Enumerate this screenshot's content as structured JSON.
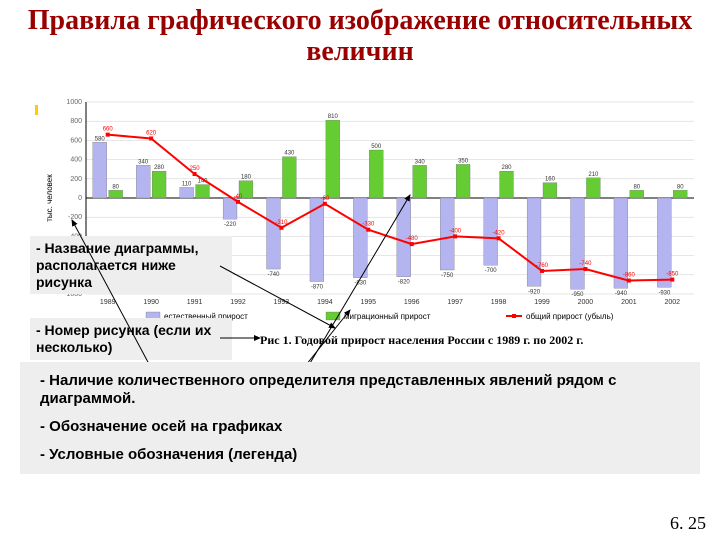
{
  "title": {
    "text": "Правила графического изображение относительных величин",
    "fontsize": 28,
    "color": "#990000"
  },
  "accent": {
    "color1": "#ffcc00",
    "color2": "#3366cc"
  },
  "chart": {
    "type": "bar+line",
    "background": "#ffffff",
    "grid_color": "#cccccc",
    "axis_color": "#000000",
    "years": [
      "1989",
      "1990",
      "1991",
      "1992",
      "1993",
      "1994",
      "1995",
      "1996",
      "1997",
      "1998",
      "1999",
      "2000",
      "2001",
      "2002"
    ],
    "series": {
      "natural": {
        "label": "естественный прирост",
        "color": "#b4b4f0",
        "values": [
          580,
          340,
          110,
          -220,
          -740,
          -870,
          -830,
          -820,
          -750,
          -700,
          -920,
          -950,
          -940,
          -930
        ]
      },
      "migration": {
        "label": "миграционный прирост",
        "color": "#66cc33",
        "values": [
          80,
          280,
          140,
          180,
          430,
          810,
          500,
          340,
          350,
          280,
          160,
          210,
          80,
          80
        ]
      },
      "total": {
        "label": "общий прирост (убыль)",
        "color": "#ff0000",
        "values": [
          660,
          620,
          250,
          -40,
          -310,
          -60,
          -330,
          -480,
          -400,
          -420,
          -760,
          -740,
          -860,
          -850
        ],
        "line_width": 2,
        "marker": "square"
      }
    },
    "ylim": [
      -1000,
      1000
    ],
    "ytick_step": 200,
    "ylabel": "тыс. человек",
    "label_fontsize": 8,
    "tick_fontsize": 7
  },
  "caption": "Рис 1. Годовой прирост населения России с 1989 г. по 2002 г.",
  "overlays": {
    "name": "- Название диаграммы, располагается ниже рисунка",
    "number": "- Номер рисунка (если их несколько)"
  },
  "bullets": [
    "- Наличие количественного определителя представленных явлений рядом с диаграммой.",
    "- Обозначение осей на графиках",
    "- Условные обозначения (легенда)"
  ],
  "bullet_fontsize": 15,
  "page_number": "6. 25",
  "arrows": {
    "color": "#000000",
    "width": 1
  }
}
